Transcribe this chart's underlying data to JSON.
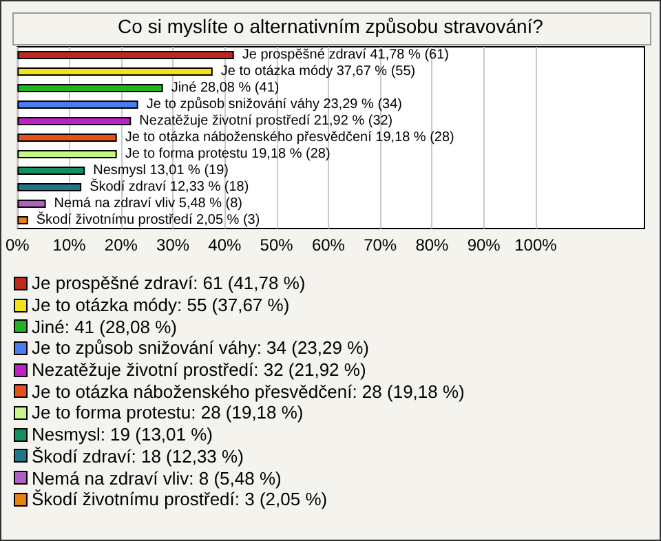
{
  "chart_data": {
    "type": "bar",
    "orientation": "horizontal",
    "title": "Co si myslíte o alternativním způsobu stravování?",
    "categories": [
      null,
      null,
      null,
      null,
      null,
      null,
      null,
      null,
      null,
      null,
      null
    ],
    "values": [
      41.78,
      37.67,
      28.08,
      23.29,
      21.92,
      19.18,
      19.18,
      13.01,
      12.33,
      5.48,
      2.05
    ],
    "colors": [
      "#c0281c",
      "#f5e11a",
      "#22b322",
      "#4a7cf0",
      "#c020c8",
      "#e8501a",
      "#c8f58a",
      "#129060",
      "#1e7888",
      "#b060c0",
      "#e88010"
    ],
    "value_labels": [
      "Je prospěšné zdraví 41,78 % (61)",
      "Je to otázka módy 37,67 % (55)",
      "Jiné 28,08 % (41)",
      "Je to způsob snižování váhy 23,29 % (34)",
      "Nezatěžuje životní prostředí 21,92 % (32)",
      "Je to otázka náboženského přesvědčení 19,18 % (28)",
      "Je to forma protestu 19,18 % (28)",
      "Nesmysl 13,01 % (19)",
      "Škodí zdraví 12,33 % (18)",
      "Nemá na zdraví vliv 5,48 % (8)",
      "Škodí životnímu prostředí 2,05 % (3)"
    ],
    "xlim": [
      0,
      121
    ],
    "xticks": [
      {
        "value": 0,
        "label": "0%"
      },
      {
        "value": 10,
        "label": "10%"
      },
      {
        "value": 20,
        "label": "20%"
      },
      {
        "value": 30,
        "label": "30%"
      },
      {
        "value": 40,
        "label": "40%"
      },
      {
        "value": 50,
        "label": "50%"
      },
      {
        "value": 60,
        "label": "60%"
      },
      {
        "value": 70,
        "label": "70%"
      },
      {
        "value": 80,
        "label": "80%"
      },
      {
        "value": 90,
        "label": "90%"
      },
      {
        "value": 100,
        "label": "100%"
      }
    ],
    "grid": "x",
    "annotations": [
      "Je prospěšné zdraví: 61 (41,78 %)",
      "Je to otázka módy: 55 (37,67 %)",
      "Jiné: 41 (28,08 %)",
      "Je to způsob snižování váhy: 34 (23,29 %)",
      "Nezatěžuje životní prostředí: 32 (21,92 %)",
      "Je to otázka náboženského přesvědčení: 28 (19,18 %)",
      "Je to forma protestu: 28 (19,18 %)",
      "Nesmysl: 19 (13,01 %)",
      "Škodí zdraví: 18 (12,33 %)",
      "Nemá na zdraví vliv: 8 (5,48 %)",
      "Škodí životnímu prostředí: 3 (2,05 %)"
    ]
  }
}
